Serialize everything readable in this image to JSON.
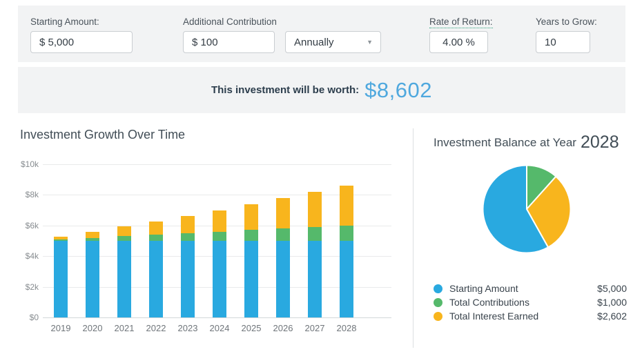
{
  "form": {
    "starting_amount": {
      "label": "Starting Amount:",
      "value": "$ 5,000"
    },
    "additional_contribution": {
      "label": "Additional Contribution",
      "value": "$ 100"
    },
    "frequency": {
      "selected": "Annually",
      "caret_icon": "▼"
    },
    "rate_of_return": {
      "label": "Rate of Return:",
      "value": "4.00 %"
    },
    "years_to_grow": {
      "label": "Years to Grow:",
      "value": "10"
    }
  },
  "banner": {
    "label": "This investment will be worth:",
    "value": "$8,602",
    "value_color": "#4fa8de"
  },
  "chart_data": [
    {
      "type": "bar",
      "stacked": true,
      "title": "Investment Growth Over Time",
      "categories": [
        "2019",
        "2020",
        "2021",
        "2022",
        "2023",
        "2024",
        "2025",
        "2026",
        "2027",
        "2028"
      ],
      "series": [
        {
          "name": "Starting Amount",
          "color": "#29a9e0",
          "values": [
            5000,
            5000,
            5000,
            5000,
            5000,
            5000,
            5000,
            5000,
            5000,
            5000
          ]
        },
        {
          "name": "Total Contributions",
          "color": "#55b96b",
          "values": [
            100,
            200,
            300,
            400,
            500,
            600,
            700,
            800,
            900,
            1000
          ]
        },
        {
          "name": "Total Interest Earned",
          "color": "#f8b51d",
          "values": [
            200,
            412,
            636,
            874,
            1125,
            1390,
            1669,
            1964,
            2275,
            2602
          ]
        }
      ],
      "totals": [
        5300,
        5612,
        5936,
        6274,
        6625,
        6990,
        7369,
        7764,
        8175,
        8602
      ],
      "ylim": [
        0,
        10000
      ],
      "yticks": [
        {
          "value": 0,
          "label": "$0"
        },
        {
          "value": 2000,
          "label": "$2k"
        },
        {
          "value": 4000,
          "label": "$4k"
        },
        {
          "value": 6000,
          "label": "$6k"
        },
        {
          "value": 8000,
          "label": "$8k"
        },
        {
          "value": 10000,
          "label": "$10k"
        }
      ],
      "grid": true,
      "legend": false
    },
    {
      "type": "pie",
      "title_prefix": "Investment Balance at Year",
      "year": "2028",
      "slices": [
        {
          "label": "Starting Amount",
          "value": 5000,
          "display": "$5,000",
          "color": "#29a9e0"
        },
        {
          "label": "Total Contributions",
          "value": 1000,
          "display": "$1,000",
          "color": "#55b96b"
        },
        {
          "label": "Total Interest Earned",
          "value": 2602,
          "display": "$2,602",
          "color": "#f8b51d"
        }
      ],
      "draw_order": [
        1,
        2,
        0
      ],
      "start_angle_deg": 0,
      "legend_position": "bottom-left"
    }
  ]
}
